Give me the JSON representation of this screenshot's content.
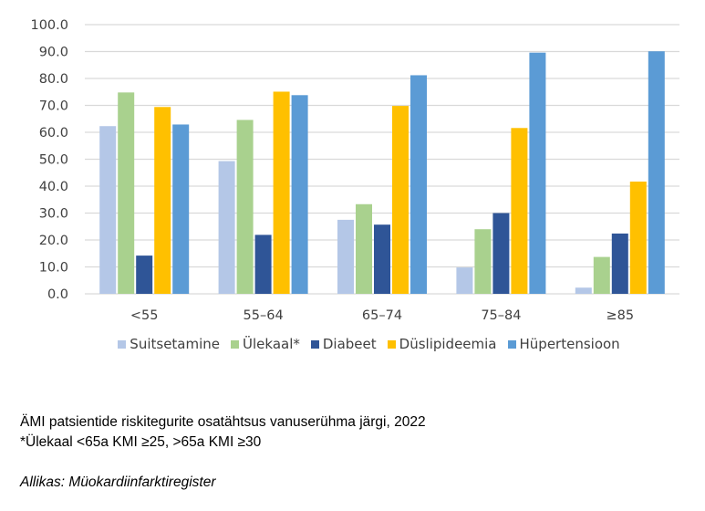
{
  "chart_data": {
    "type": "bar",
    "categories": [
      "<55",
      "55–64",
      "65–74",
      "75–84",
      "≥85"
    ],
    "ylim": [
      0,
      100
    ],
    "yticks": [
      "0.0",
      "10.0",
      "20.0",
      "30.0",
      "40.0",
      "50.0",
      "60.0",
      "70.0",
      "80.0",
      "90.0",
      "100.0"
    ],
    "grid": true,
    "legend_position": "bottom",
    "series": [
      {
        "name": "Suitsetamine",
        "color": "#B4C7E7",
        "values": [
          62.3,
          49.3,
          27.5,
          9.8,
          2.3
        ]
      },
      {
        "name": "Ülekaal*",
        "color": "#A9D18E",
        "values": [
          74.8,
          64.6,
          33.3,
          24.0,
          13.7
        ]
      },
      {
        "name": "Diabeet",
        "color": "#2F5597",
        "values": [
          14.2,
          21.9,
          25.7,
          30.0,
          22.4
        ]
      },
      {
        "name": "Düslipideemia",
        "color": "#FFC000",
        "values": [
          69.4,
          75.1,
          69.8,
          61.6,
          41.7
        ]
      },
      {
        "name": "Hüpertensioon",
        "color": "#5B9BD5",
        "values": [
          62.9,
          73.8,
          81.2,
          89.6,
          90.1
        ]
      }
    ]
  },
  "caption": {
    "title": "ÄMI patsientide riskitegurite osatähtsus vanuserühma järgi, 2022",
    "note": "*Ülekaal <65a KMI ≥25, >65a KMI ≥30",
    "source": "Allikas: Müokardiinfarktiregister"
  }
}
